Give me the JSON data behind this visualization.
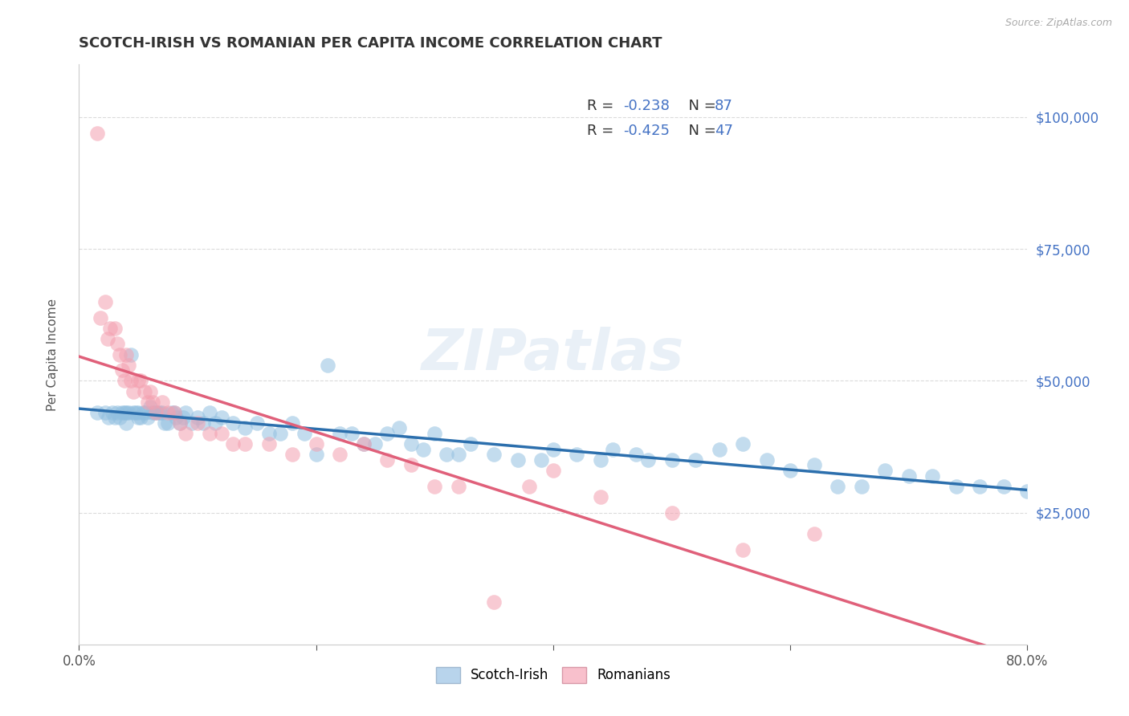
{
  "title": "SCOTCH-IRISH VS ROMANIAN PER CAPITA INCOME CORRELATION CHART",
  "source": "Source: ZipAtlas.com",
  "ylabel": "Per Capita Income",
  "ylim": [
    0,
    110000
  ],
  "xlim": [
    0.0,
    0.8
  ],
  "yticks": [
    25000,
    50000,
    75000,
    100000
  ],
  "ytick_labels": [
    "$25,000",
    "$50,000",
    "$75,000",
    "$100,000"
  ],
  "scotch_irish_R": "-0.238",
  "scotch_irish_N": "87",
  "romanian_R": "-0.425",
  "romanian_N": "47",
  "scotch_irish_scatter_color": "#92c0e0",
  "romanian_scatter_color": "#f4a0b0",
  "scotch_irish_line_color": "#2c6fad",
  "romanian_line_color": "#e0607a",
  "legend_scotch_color": "#b8d4ec",
  "legend_romanian_color": "#f8c0cc",
  "background_color": "#ffffff",
  "grid_color": "#cccccc",
  "title_color": "#333333",
  "source_color": "#aaaaaa",
  "axis_label_color": "#4472c4",
  "legend_text_color": "#333333",
  "legend_value_color": "#4472c4",
  "watermark_color": "#8ab0d8",
  "scotch_irish_x": [
    0.015,
    0.022,
    0.025,
    0.028,
    0.03,
    0.032,
    0.034,
    0.036,
    0.038,
    0.04,
    0.04,
    0.042,
    0.044,
    0.046,
    0.048,
    0.05,
    0.05,
    0.052,
    0.054,
    0.056,
    0.058,
    0.06,
    0.062,
    0.064,
    0.066,
    0.068,
    0.07,
    0.072,
    0.075,
    0.078,
    0.08,
    0.082,
    0.085,
    0.088,
    0.09,
    0.095,
    0.1,
    0.105,
    0.11,
    0.115,
    0.12,
    0.13,
    0.14,
    0.15,
    0.16,
    0.17,
    0.18,
    0.19,
    0.2,
    0.21,
    0.22,
    0.23,
    0.24,
    0.25,
    0.26,
    0.27,
    0.28,
    0.29,
    0.3,
    0.31,
    0.32,
    0.33,
    0.35,
    0.37,
    0.39,
    0.4,
    0.42,
    0.44,
    0.45,
    0.47,
    0.48,
    0.5,
    0.52,
    0.54,
    0.56,
    0.58,
    0.6,
    0.62,
    0.64,
    0.66,
    0.68,
    0.7,
    0.72,
    0.74,
    0.76,
    0.78,
    0.8
  ],
  "scotch_irish_y": [
    44000,
    44000,
    43000,
    44000,
    43000,
    44000,
    43000,
    44000,
    44000,
    42000,
    44000,
    44000,
    55000,
    44000,
    44000,
    44000,
    43000,
    43000,
    44000,
    44000,
    43000,
    45000,
    44000,
    44000,
    44000,
    44000,
    44000,
    42000,
    42000,
    44000,
    44000,
    43000,
    42000,
    43000,
    44000,
    42000,
    43000,
    42000,
    44000,
    42000,
    43000,
    42000,
    41000,
    42000,
    40000,
    40000,
    42000,
    40000,
    36000,
    53000,
    40000,
    40000,
    38000,
    38000,
    40000,
    41000,
    38000,
    37000,
    40000,
    36000,
    36000,
    38000,
    36000,
    35000,
    35000,
    37000,
    36000,
    35000,
    37000,
    36000,
    35000,
    35000,
    35000,
    37000,
    38000,
    35000,
    33000,
    34000,
    30000,
    30000,
    33000,
    32000,
    32000,
    30000,
    30000,
    30000,
    29000
  ],
  "romanian_x": [
    0.015,
    0.018,
    0.022,
    0.024,
    0.026,
    0.03,
    0.032,
    0.034,
    0.036,
    0.038,
    0.04,
    0.042,
    0.044,
    0.046,
    0.05,
    0.052,
    0.055,
    0.058,
    0.06,
    0.062,
    0.065,
    0.07,
    0.075,
    0.08,
    0.085,
    0.09,
    0.1,
    0.11,
    0.12,
    0.13,
    0.14,
    0.16,
    0.18,
    0.2,
    0.22,
    0.24,
    0.26,
    0.28,
    0.3,
    0.32,
    0.35,
    0.38,
    0.4,
    0.44,
    0.5,
    0.56,
    0.62
  ],
  "romanian_y": [
    97000,
    62000,
    65000,
    58000,
    60000,
    60000,
    57000,
    55000,
    52000,
    50000,
    55000,
    53000,
    50000,
    48000,
    50000,
    50000,
    48000,
    46000,
    48000,
    46000,
    44000,
    46000,
    44000,
    44000,
    42000,
    40000,
    42000,
    40000,
    40000,
    38000,
    38000,
    38000,
    36000,
    38000,
    36000,
    38000,
    35000,
    34000,
    30000,
    30000,
    8000,
    30000,
    33000,
    28000,
    25000,
    18000,
    21000
  ]
}
